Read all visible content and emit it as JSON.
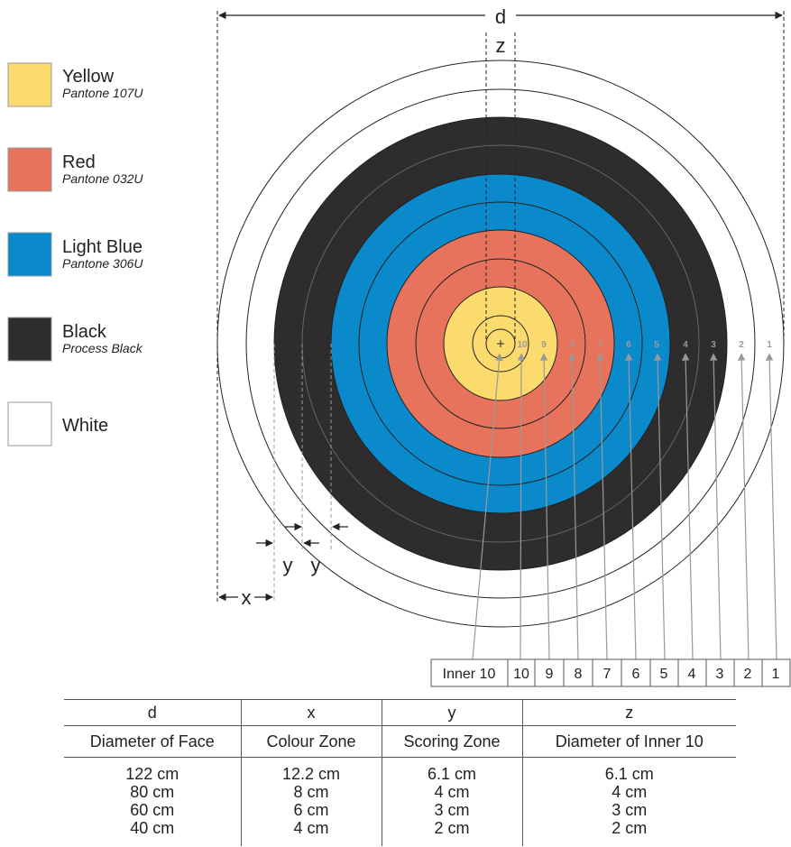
{
  "legend": [
    {
      "name": "Yellow",
      "pantone": "Pantone 107U",
      "color": "#FBDA6E"
    },
    {
      "name": "Red",
      "pantone": "Pantone 032U",
      "color": "#E8735D"
    },
    {
      "name": "Light Blue",
      "pantone": "Pantone 306U",
      "color": "#0A89CB"
    },
    {
      "name": "Black",
      "pantone": "Process Black",
      "color": "#2E2C2D"
    },
    {
      "name": "White",
      "pantone": "",
      "color": "#FFFFFF"
    }
  ],
  "dimension_labels": {
    "d": "d",
    "z": "z",
    "x": "x",
    "y": "y"
  },
  "ring_numbers": [
    "10",
    "9",
    "8",
    "7",
    "6",
    "5",
    "4",
    "3",
    "2",
    "1"
  ],
  "score_zones": [
    "Inner 10",
    "10",
    "9",
    "8",
    "7",
    "6",
    "5",
    "4",
    "3",
    "2",
    "1"
  ],
  "table": {
    "headers": [
      "d",
      "x",
      "y",
      "z"
    ],
    "descriptions": [
      "Diameter of Face",
      "Colour Zone",
      "Scoring Zone",
      "Diameter of Inner 10"
    ],
    "columns": [
      [
        "122 cm",
        "80 cm",
        "60 cm",
        "40 cm"
      ],
      [
        "12.2 cm",
        "8 cm",
        "6 cm",
        "4 cm"
      ],
      [
        "6.1 cm",
        "4 cm",
        "3 cm",
        "2 cm"
      ],
      [
        "6.1 cm",
        "4 cm",
        "3 cm",
        "2 cm"
      ]
    ]
  }
}
